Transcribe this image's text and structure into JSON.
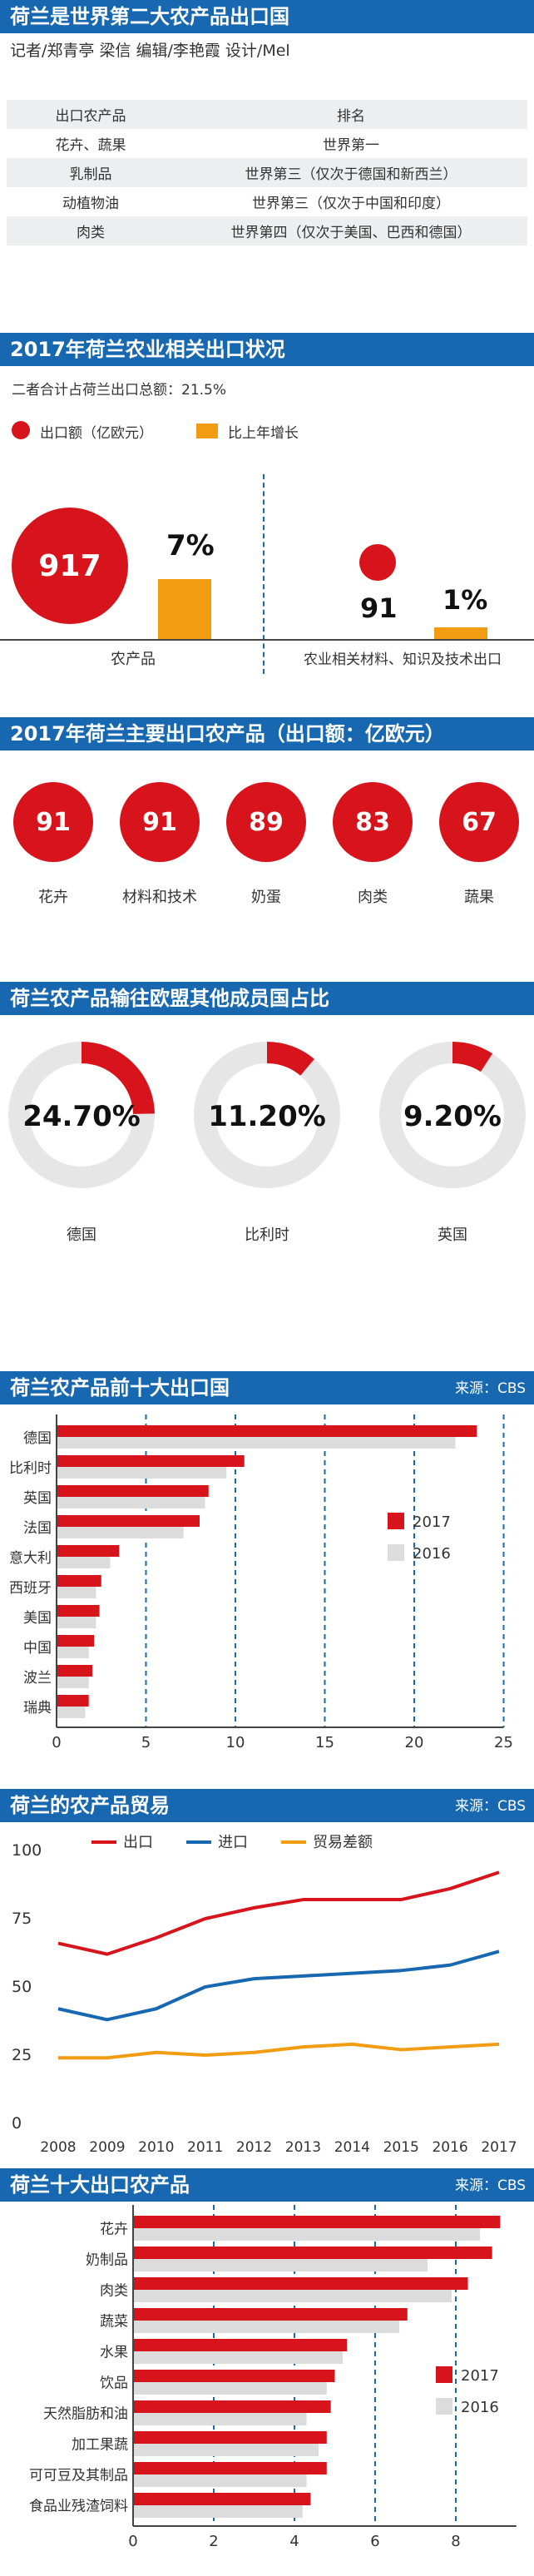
{
  "header1": {
    "title": "荷兰是世界第二大农产品出口国",
    "byline": "记者/郑青亭 梁信 编辑/李艳霞 设计/Mel"
  },
  "rank_table": {
    "headers": [
      "出口农产品",
      "排名"
    ],
    "rows": [
      [
        "花卉、蔬果",
        "世界第一"
      ],
      [
        "乳制品",
        "世界第三（仅次于德国和新西兰）"
      ],
      [
        "动植物油",
        "世界第三（仅次于中国和印度）"
      ],
      [
        "肉类",
        "世界第四（仅次于美国、巴西和德国）"
      ]
    ]
  },
  "section2": {
    "title": "2017年荷兰农业相关出口状况",
    "note": "二者合计占荷兰出口总额：21.5%",
    "legend": {
      "export_amount": "出口额（亿欧元）",
      "growth": "比上年增长"
    },
    "colors": {
      "red": "#d7141b",
      "orange": "#f29c12",
      "blue": "#1768b0"
    },
    "groups": [
      {
        "label": "农产品",
        "amount": "917",
        "growth": "7%"
      },
      {
        "label": "农业相关材料、知识及技术出口",
        "amount": "91",
        "growth": "1%"
      }
    ]
  },
  "section3": {
    "title": "2017年荷兰主要出口农产品（出口额：亿欧元）",
    "items": [
      {
        "value": "91",
        "label": "花卉"
      },
      {
        "value": "91",
        "label": "材料和技术"
      },
      {
        "value": "89",
        "label": "奶蛋"
      },
      {
        "value": "83",
        "label": "肉类"
      },
      {
        "value": "67",
        "label": "蔬果"
      }
    ]
  },
  "section4": {
    "title": "荷兰农产品输往欧盟其他成员国占比",
    "items": [
      {
        "value": "24.70%",
        "fraction": 0.247,
        "label": "德国"
      },
      {
        "value": "11.20%",
        "fraction": 0.112,
        "label": "比利时"
      },
      {
        "value": "9.20%",
        "fraction": 0.092,
        "label": "英国"
      }
    ]
  },
  "section5": {
    "title": "荷兰农产品前十大出口国",
    "source": "来源：CBS"
  },
  "section6": {
    "title": "荷兰的农产品贸易",
    "source": "来源：CBS"
  },
  "section7": {
    "title": "荷兰十大出口农产品",
    "source": "来源：CBS"
  },
  "chart_data": [
    {
      "type": "bar",
      "orientation": "horizontal",
      "categories": [
        "德国",
        "比利时",
        "英国",
        "法国",
        "意大利",
        "西班牙",
        "美国",
        "中国",
        "波兰",
        "瑞典"
      ],
      "series": [
        {
          "name": "2017",
          "color": "#d7141b",
          "values": [
            23.5,
            10.5,
            8.5,
            8.0,
            3.5,
            2.5,
            2.4,
            2.1,
            2.0,
            1.8
          ]
        },
        {
          "name": "2016",
          "color": "#dcdcdc",
          "values": [
            22.3,
            9.5,
            8.3,
            7.1,
            3.0,
            2.2,
            2.2,
            1.8,
            1.8,
            1.6
          ]
        }
      ],
      "xlim": [
        0,
        25
      ],
      "xticks": [
        0,
        5,
        10,
        15,
        20,
        25
      ],
      "legend": "right"
    },
    {
      "type": "line",
      "x": [
        "2008",
        "2009",
        "2010",
        "2011",
        "2012",
        "2013",
        "2014",
        "2015",
        "2016",
        "2017"
      ],
      "series": [
        {
          "name": "出口",
          "color": "#d7141b",
          "values": [
            66,
            62,
            68,
            75,
            79,
            82,
            82,
            82,
            86,
            92
          ]
        },
        {
          "name": "进口",
          "color": "#1768b0",
          "values": [
            42,
            38,
            42,
            50,
            53,
            54,
            55,
            56,
            58,
            63
          ]
        },
        {
          "name": "贸易差额",
          "color": "#f29c12",
          "values": [
            24,
            24,
            26,
            25,
            26,
            28,
            29,
            27,
            28,
            29
          ]
        }
      ],
      "ylim": [
        0,
        100
      ],
      "yticks": [
        0,
        25,
        50,
        75,
        100
      ],
      "grid": false,
      "legend": "top"
    },
    {
      "type": "bar",
      "orientation": "horizontal",
      "categories": [
        "花卉",
        "奶制品",
        "肉类",
        "蔬菜",
        "水果",
        "饮品",
        "天然脂肪和油",
        "加工果蔬",
        "可可豆及其制品",
        "食品业残渣饲料"
      ],
      "series": [
        {
          "name": "2017",
          "color": "#d7141b",
          "values": [
            9.1,
            8.9,
            8.3,
            6.8,
            5.3,
            5.0,
            4.9,
            4.8,
            4.8,
            4.4
          ]
        },
        {
          "name": "2016",
          "color": "#dcdcdc",
          "values": [
            8.6,
            7.3,
            7.9,
            6.6,
            5.2,
            4.8,
            4.3,
            4.6,
            4.3,
            4.2
          ]
        }
      ],
      "xlim": [
        0,
        9.5
      ],
      "xticks": [
        0,
        2,
        4,
        6,
        8
      ],
      "legend": "right"
    }
  ]
}
